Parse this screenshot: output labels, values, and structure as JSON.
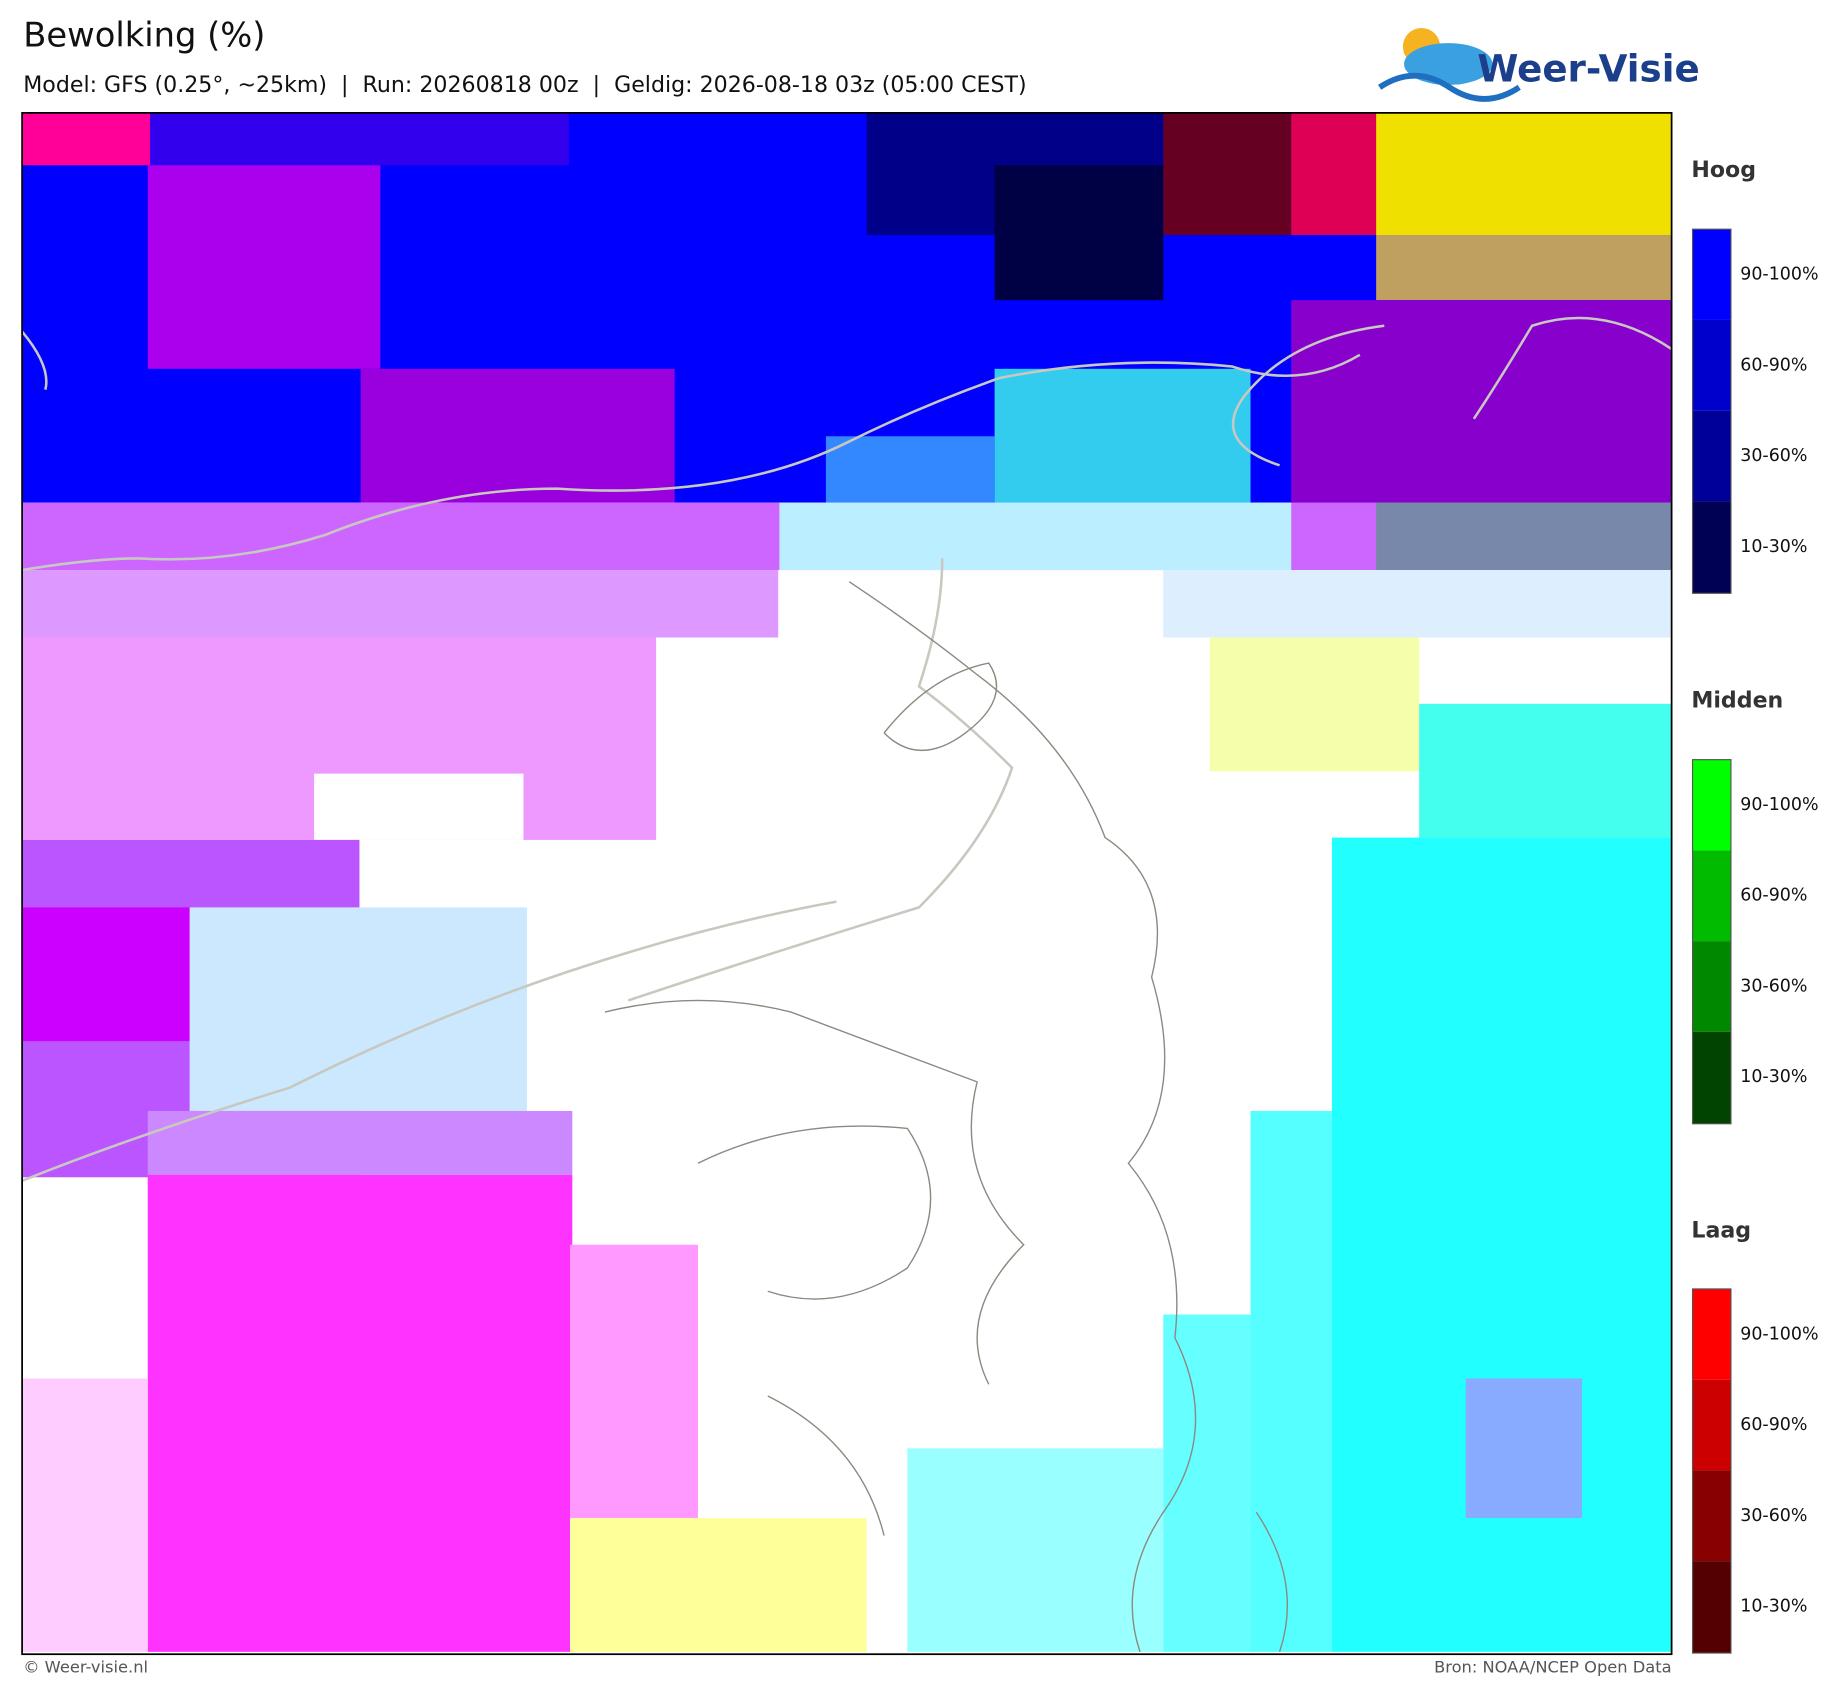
{
  "header": {
    "title": "Bewolking (%)",
    "subtitle": "Model: GFS (0.25°, ~25km)  |  Run: 20260818 00z  |  Geldig: 2026-08-18 03z (05:00 CEST)",
    "logo": "Weer-Visie"
  },
  "legend": [
    {
      "title": "Hoog",
      "labels": [
        "90-100%",
        "60-90%",
        "30-60%",
        "10-30%"
      ]
    },
    {
      "title": "Midden",
      "labels": [
        "90-100%",
        "60-90%",
        "30-60%",
        "10-30%"
      ]
    },
    {
      "title": "Laag",
      "labels": [
        "90-100%",
        "60-90%",
        "30-60%",
        "10-30%"
      ]
    }
  ],
  "footer": {
    "left": "© Weer-visie.nl",
    "right": "Bron: NOAA/NCEP Open Data"
  }
}
